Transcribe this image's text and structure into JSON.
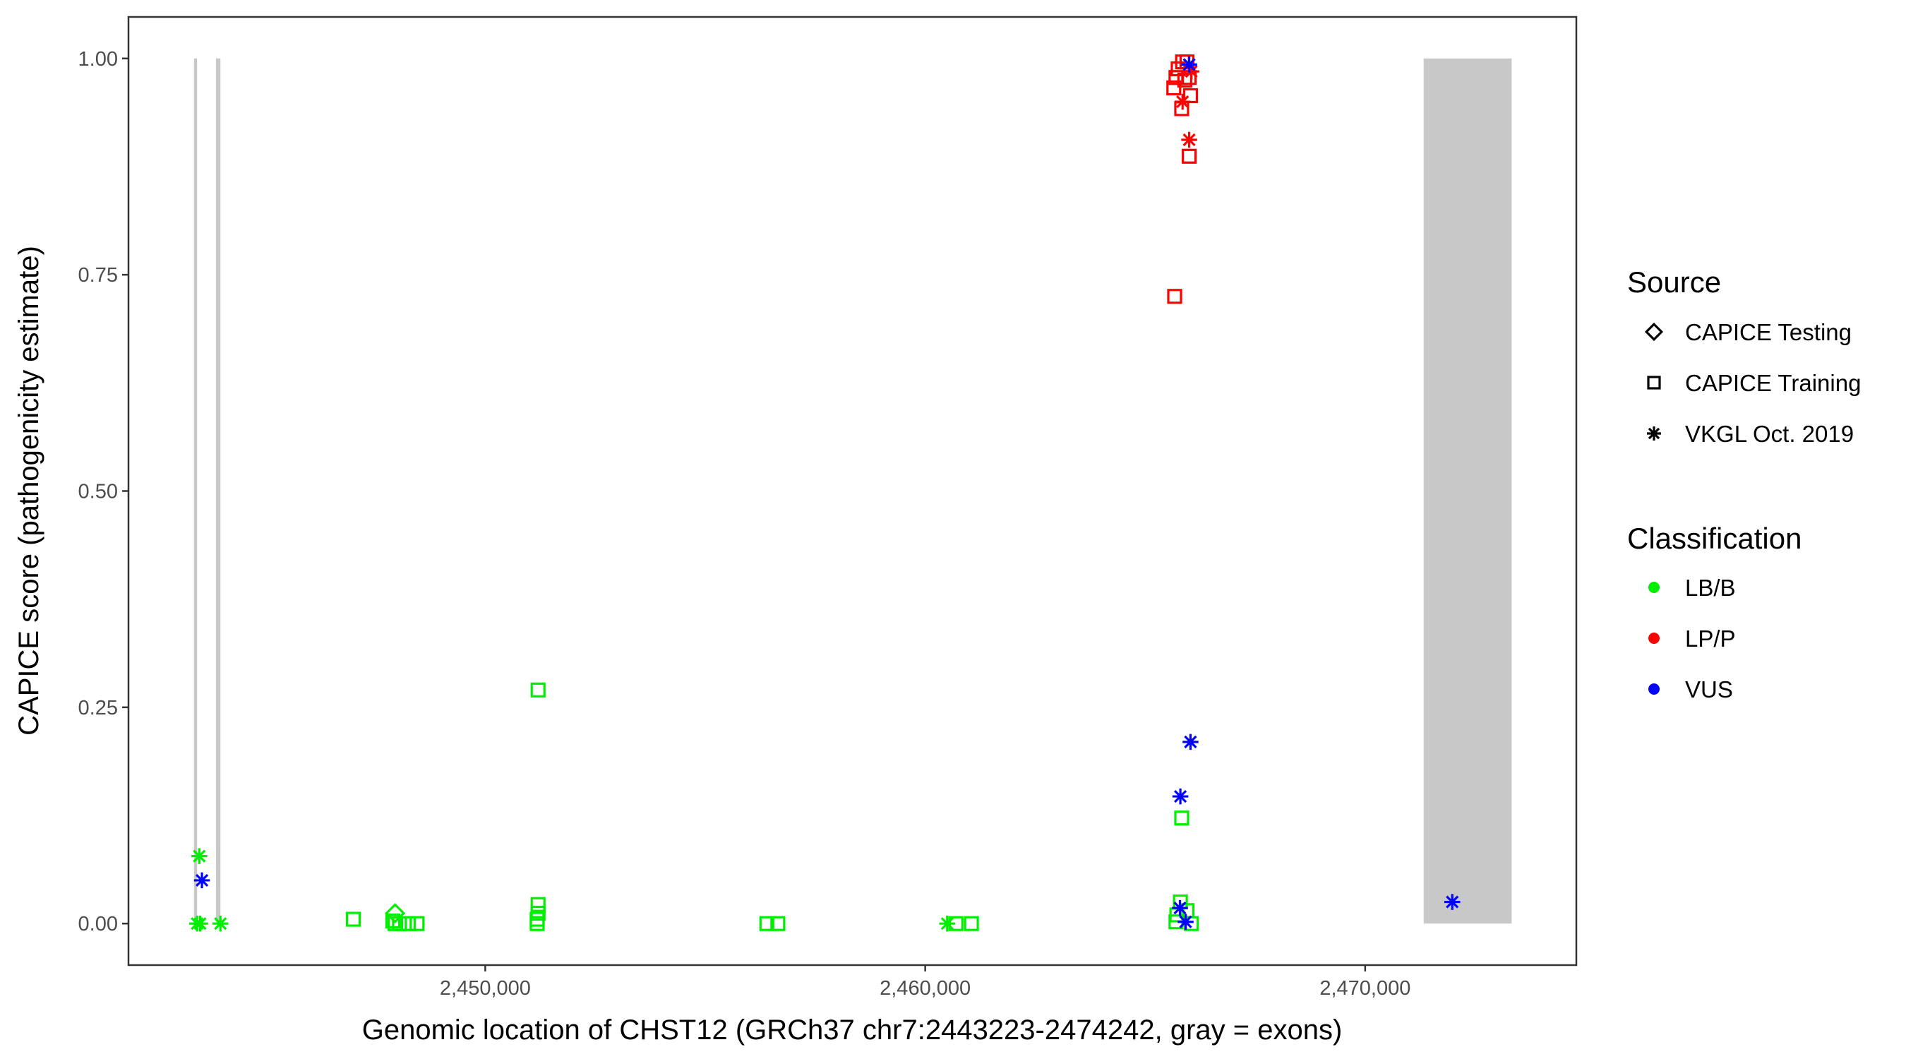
{
  "chart_data": {
    "type": "scatter",
    "xlabel": "Genomic location of CHST12 (GRCh37 chr7:2443223-2474242, gray = exons)",
    "ylabel": "CAPICE score (pathogenicity estimate)",
    "xlim": [
      2441890,
      2474800
    ],
    "ylim": [
      -0.048,
      1.048
    ],
    "x_ticks": [
      {
        "value": 2450000,
        "label": "2,450,000"
      },
      {
        "value": 2460000,
        "label": "2,460,000"
      },
      {
        "value": 2470000,
        "label": "2,470,000"
      }
    ],
    "y_ticks": [
      {
        "value": 0,
        "label": "0.00"
      },
      {
        "value": 0.25,
        "label": "0.25"
      },
      {
        "value": 0.5,
        "label": "0.50"
      },
      {
        "value": 0.75,
        "label": "0.75"
      },
      {
        "value": 1,
        "label": "1.00"
      }
    ],
    "grid": false,
    "exons": [
      [
        2443380,
        2443450
      ],
      [
        2443880,
        2443980
      ],
      [
        2471330,
        2473330
      ]
    ],
    "exon_color": "#c8c8c8",
    "legend": {
      "placement": "right",
      "source_title": "Source",
      "source_items": [
        {
          "label": "CAPICE Testing",
          "shape": "diamond"
        },
        {
          "label": "CAPICE Training",
          "shape": "square"
        },
        {
          "label": "VKGL Oct. 2019",
          "shape": "asterisk"
        }
      ],
      "class_title": "Classification",
      "class_items": [
        {
          "label": "LB/B",
          "color": "#00ee00"
        },
        {
          "label": "LP/P",
          "color": "#ff0000"
        },
        {
          "label": "VUS",
          "color": "#0000ff"
        }
      ]
    },
    "points": [
      {
        "x": 2443500,
        "y": 0.078,
        "source": "VKGL Oct. 2019",
        "class": "LB/B"
      },
      {
        "x": 2443450,
        "y": 0.0,
        "source": "VKGL Oct. 2019",
        "class": "LB/B"
      },
      {
        "x": 2443520,
        "y": 0.0,
        "source": "VKGL Oct. 2019",
        "class": "LB/B"
      },
      {
        "x": 2443980,
        "y": 0.0,
        "source": "VKGL Oct. 2019",
        "class": "LB/B"
      },
      {
        "x": 2443560,
        "y": 0.05,
        "source": "VKGL Oct. 2019",
        "class": "VUS"
      },
      {
        "x": 2447000,
        "y": 0.005,
        "source": "CAPICE Training",
        "class": "LB/B"
      },
      {
        "x": 2447950,
        "y": 0.012,
        "source": "CAPICE Testing",
        "class": "LB/B"
      },
      {
        "x": 2447900,
        "y": 0.003,
        "source": "CAPICE Training",
        "class": "LB/B"
      },
      {
        "x": 2447950,
        "y": 0.0,
        "source": "CAPICE Training",
        "class": "LB/B"
      },
      {
        "x": 2448050,
        "y": 0.0,
        "source": "CAPICE Training",
        "class": "LB/B"
      },
      {
        "x": 2448250,
        "y": 0.0,
        "source": "CAPICE Training",
        "class": "LB/B"
      },
      {
        "x": 2448450,
        "y": 0.0,
        "source": "CAPICE Training",
        "class": "LB/B"
      },
      {
        "x": 2451200,
        "y": 0.27,
        "source": "CAPICE Training",
        "class": "LB/B"
      },
      {
        "x": 2451200,
        "y": 0.022,
        "source": "CAPICE Training",
        "class": "LB/B"
      },
      {
        "x": 2451200,
        "y": 0.012,
        "source": "CAPICE Training",
        "class": "LB/B"
      },
      {
        "x": 2451180,
        "y": 0.005,
        "source": "CAPICE Training",
        "class": "LB/B"
      },
      {
        "x": 2451180,
        "y": 0.0,
        "source": "CAPICE Training",
        "class": "LB/B"
      },
      {
        "x": 2456400,
        "y": 0.0,
        "source": "CAPICE Training",
        "class": "LB/B"
      },
      {
        "x": 2456650,
        "y": 0.0,
        "source": "CAPICE Training",
        "class": "LB/B"
      },
      {
        "x": 2460500,
        "y": 0.0,
        "source": "VKGL Oct. 2019",
        "class": "LB/B"
      },
      {
        "x": 2460700,
        "y": 0.0,
        "source": "CAPICE Training",
        "class": "LB/B"
      },
      {
        "x": 2461050,
        "y": 0.0,
        "source": "CAPICE Training",
        "class": "LB/B"
      },
      {
        "x": 2465830,
        "y": 0.122,
        "source": "CAPICE Training",
        "class": "LB/B"
      },
      {
        "x": 2465800,
        "y": 0.025,
        "source": "CAPICE Training",
        "class": "LB/B"
      },
      {
        "x": 2465950,
        "y": 0.015,
        "source": "CAPICE Training",
        "class": "LB/B"
      },
      {
        "x": 2465720,
        "y": 0.01,
        "source": "CAPICE Training",
        "class": "LB/B"
      },
      {
        "x": 2465700,
        "y": 0.002,
        "source": "CAPICE Training",
        "class": "LB/B"
      },
      {
        "x": 2466050,
        "y": 0.0,
        "source": "CAPICE Training",
        "class": "LB/B"
      },
      {
        "x": 2466030,
        "y": 0.21,
        "source": "VKGL Oct. 2019",
        "class": "VUS"
      },
      {
        "x": 2465800,
        "y": 0.147,
        "source": "VKGL Oct. 2019",
        "class": "VUS"
      },
      {
        "x": 2465790,
        "y": 0.018,
        "source": "VKGL Oct. 2019",
        "class": "VUS"
      },
      {
        "x": 2465920,
        "y": 0.002,
        "source": "VKGL Oct. 2019",
        "class": "VUS"
      },
      {
        "x": 2465670,
        "y": 0.725,
        "source": "CAPICE Training",
        "class": "LP/P"
      },
      {
        "x": 2466000,
        "y": 0.887,
        "source": "CAPICE Training",
        "class": "LP/P"
      },
      {
        "x": 2466000,
        "y": 0.906,
        "source": "VKGL Oct. 2019",
        "class": "LP/P"
      },
      {
        "x": 2465830,
        "y": 0.942,
        "source": "CAPICE Training",
        "class": "LP/P"
      },
      {
        "x": 2466030,
        "y": 0.957,
        "source": "CAPICE Training",
        "class": "LP/P"
      },
      {
        "x": 2465850,
        "y": 0.95,
        "source": "VKGL Oct. 2019",
        "class": "LP/P"
      },
      {
        "x": 2465650,
        "y": 0.966,
        "source": "CAPICE Training",
        "class": "LP/P"
      },
      {
        "x": 2465700,
        "y": 0.978,
        "source": "CAPICE Training",
        "class": "LP/P"
      },
      {
        "x": 2465900,
        "y": 0.975,
        "source": "CAPICE Training",
        "class": "LP/P"
      },
      {
        "x": 2466000,
        "y": 0.978,
        "source": "CAPICE Training",
        "class": "LP/P"
      },
      {
        "x": 2465750,
        "y": 0.988,
        "source": "CAPICE Training",
        "class": "LP/P"
      },
      {
        "x": 2465850,
        "y": 0.996,
        "source": "CAPICE Training",
        "class": "LP/P"
      },
      {
        "x": 2465950,
        "y": 0.996,
        "source": "CAPICE Training",
        "class": "LP/P"
      },
      {
        "x": 2466050,
        "y": 0.985,
        "source": "VKGL Oct. 2019",
        "class": "LP/P"
      },
      {
        "x": 2466000,
        "y": 0.993,
        "source": "VKGL Oct. 2019",
        "class": "VUS"
      },
      {
        "x": 2471980,
        "y": 0.025,
        "source": "VKGL Oct. 2019",
        "class": "VUS"
      }
    ]
  }
}
